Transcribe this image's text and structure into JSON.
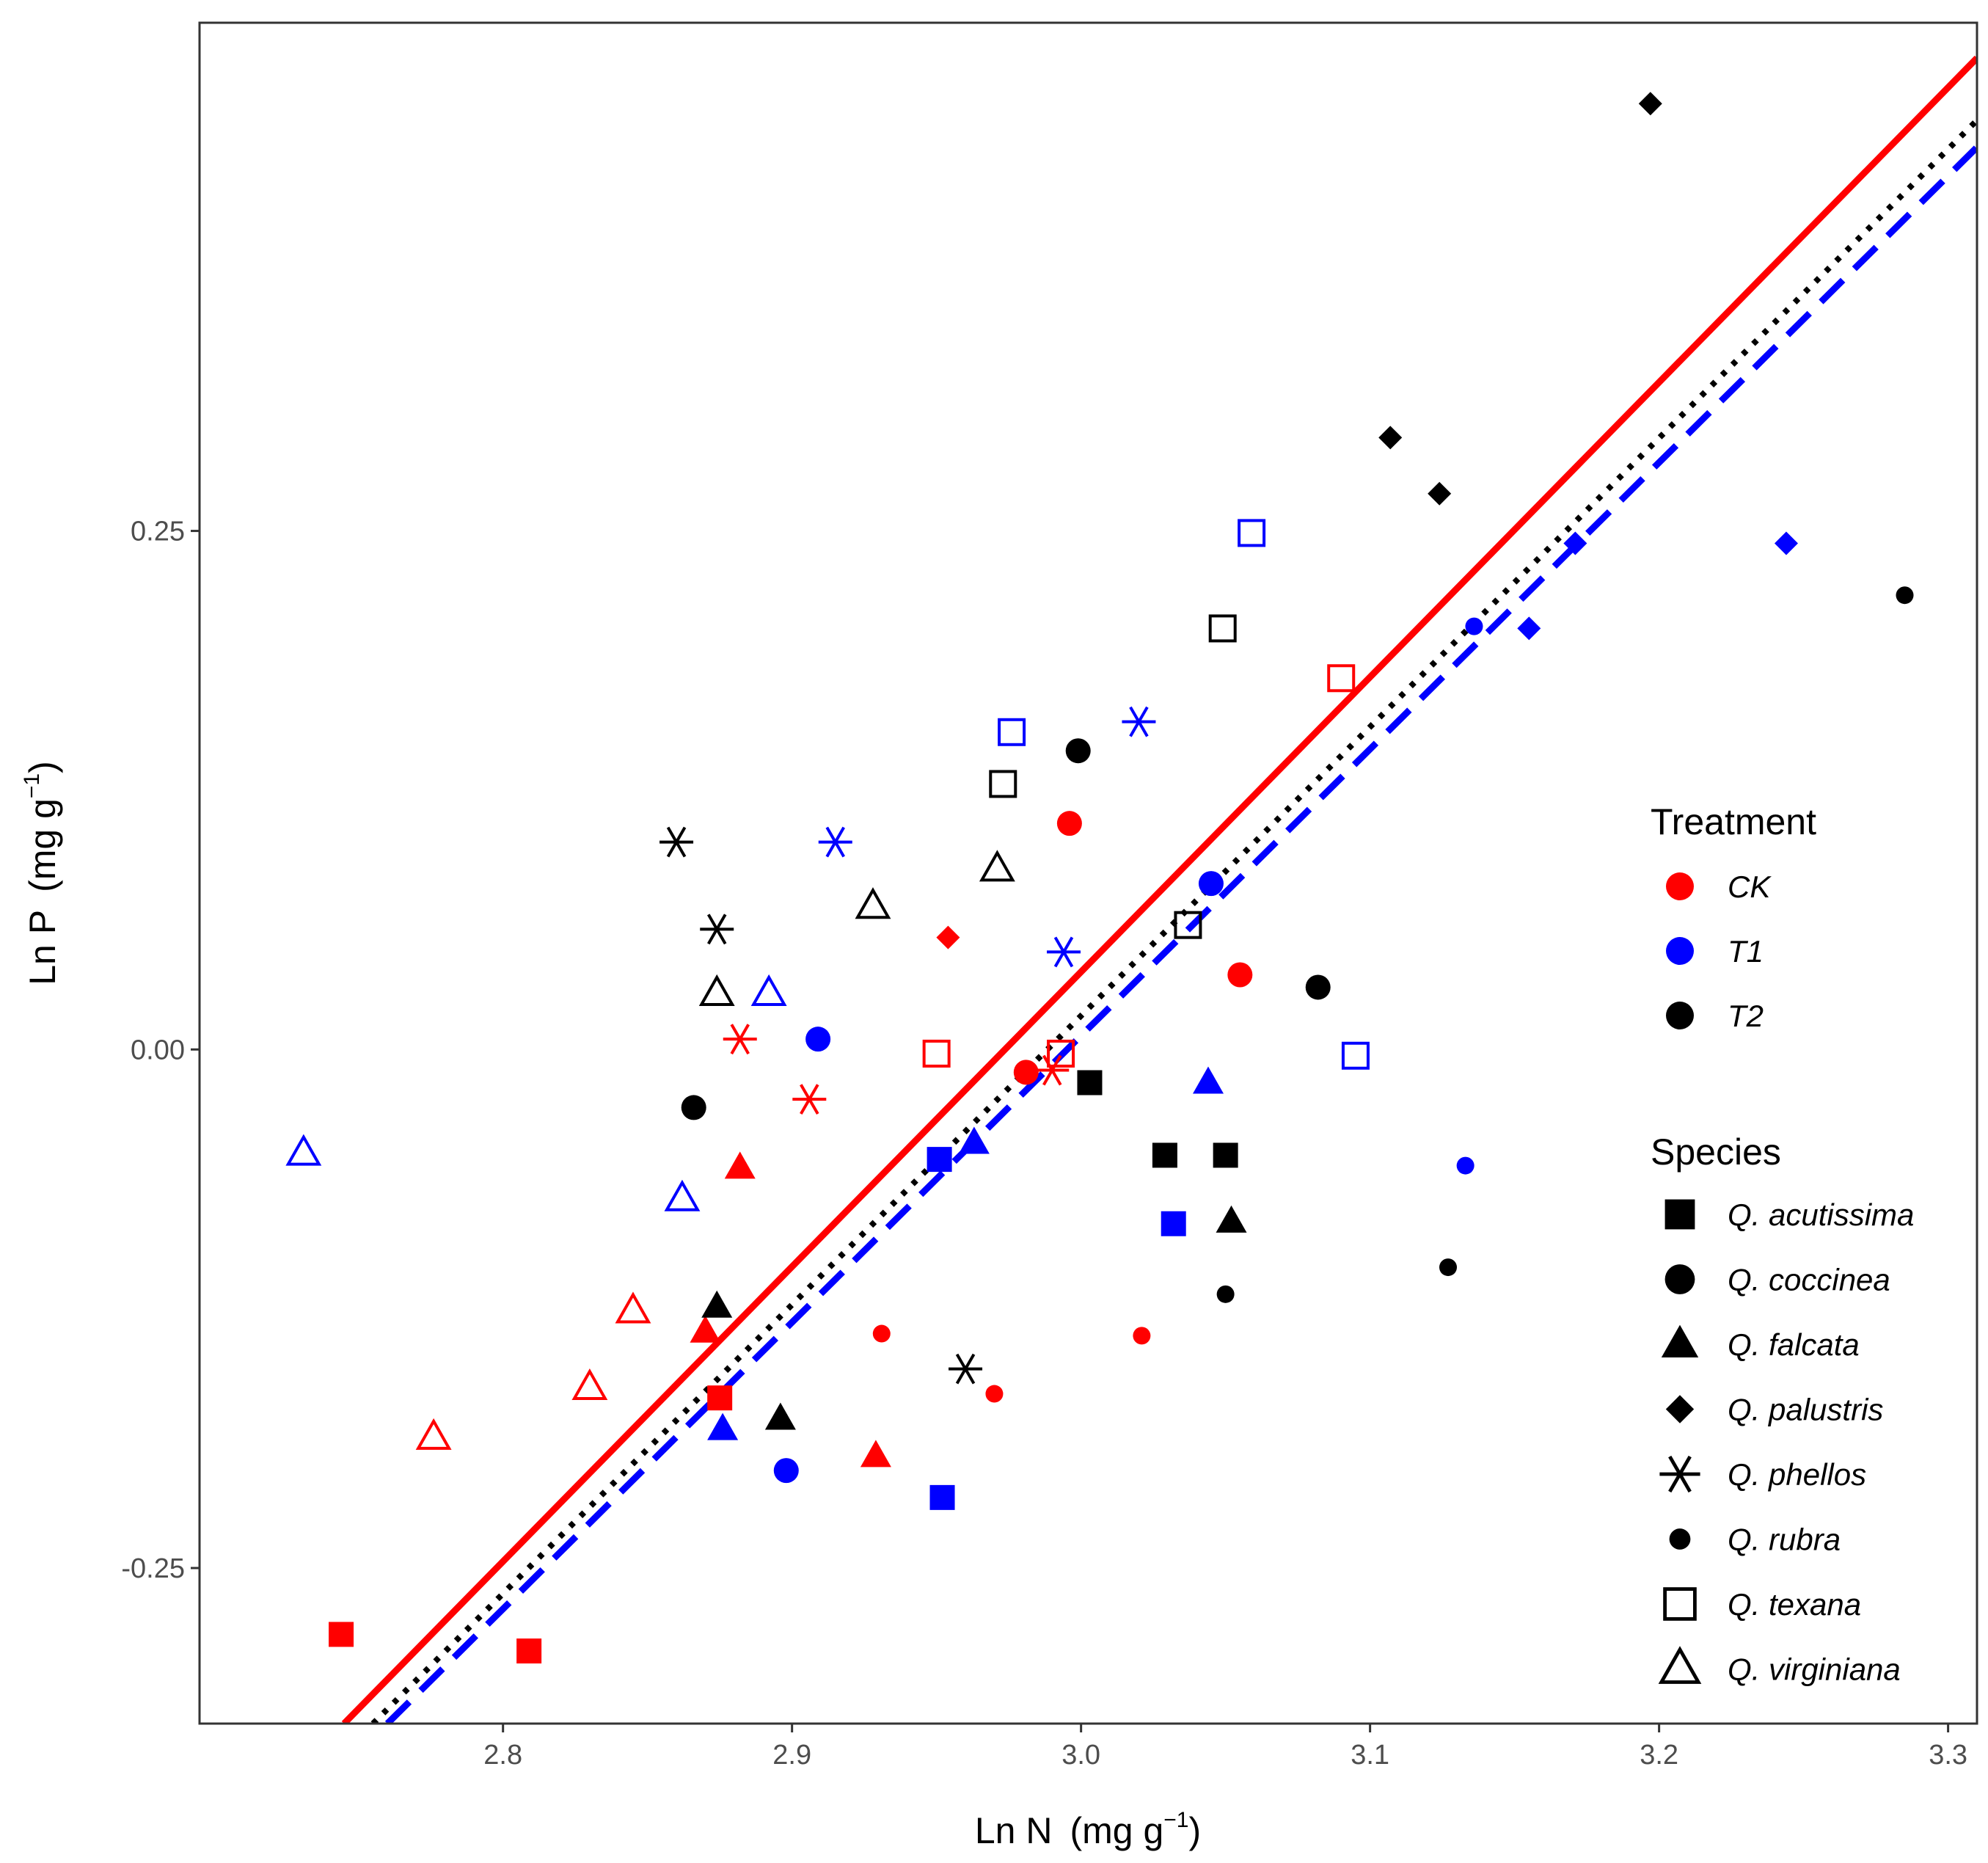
{
  "chart_data": {
    "type": "scatter",
    "xlabel": {
      "main": "Ln N",
      "unit_prefix": "(mg g",
      "unit_exp": "−1",
      "unit_suffix": ")"
    },
    "ylabel": {
      "main": "Ln P",
      "unit_prefix": "(mg g",
      "unit_exp": "−1",
      "unit_suffix": ")"
    },
    "xlim": [
      2.695,
      3.31
    ],
    "ylim": [
      -0.325,
      0.495
    ],
    "x_ticks": [
      {
        "value": 2.8,
        "label": "2.8"
      },
      {
        "value": 2.9,
        "label": "2.9"
      },
      {
        "value": 3.0,
        "label": "3.0"
      },
      {
        "value": 3.1,
        "label": "3.1"
      },
      {
        "value": 3.2,
        "label": "3.2"
      },
      {
        "value": 3.3,
        "label": "3.3"
      }
    ],
    "y_ticks": [
      {
        "value": -0.25,
        "label": "-0.25"
      },
      {
        "value": 0.0,
        "label": "0.00"
      },
      {
        "value": 0.25,
        "label": "0.25"
      }
    ],
    "grid": false,
    "colors": {
      "CK": "#ff0000",
      "T1": "#0000ff",
      "T2": "#000000"
    },
    "fit_lines": [
      {
        "treatment": "CK",
        "style": "solid",
        "x": [
          2.745,
          3.31
        ],
        "y": [
          -0.325,
          0.478
        ]
      },
      {
        "treatment": "T2",
        "style": "dotted",
        "x": [
          2.755,
          3.31
        ],
        "y": [
          -0.325,
          0.448
        ]
      },
      {
        "treatment": "T1",
        "style": "dashed",
        "x": [
          2.76,
          3.31
        ],
        "y": [
          -0.325,
          0.435
        ]
      }
    ],
    "legend": {
      "position": "right",
      "treatment_title": "Treatment",
      "treatments": [
        {
          "key": "CK",
          "label": "CK"
        },
        {
          "key": "T1",
          "label": "T1"
        },
        {
          "key": "T2",
          "label": "T2"
        }
      ],
      "species_title": "Species",
      "species": [
        {
          "shape": "square-filled",
          "label": "Q. acutissima"
        },
        {
          "shape": "circle-filled",
          "label": "Q. coccinea"
        },
        {
          "shape": "triangle-filled",
          "label": "Q. falcata"
        },
        {
          "shape": "diamond-filled",
          "label": "Q. palustris"
        },
        {
          "shape": "star",
          "label": "Q. phellos"
        },
        {
          "shape": "small-circle",
          "label": "Q. rubra"
        },
        {
          "shape": "square-open",
          "label": "Q. texana"
        },
        {
          "shape": "triangle-open",
          "label": "Q. virginiana"
        }
      ]
    },
    "points": [
      {
        "x": 2.744,
        "y": -0.282,
        "shape": "square-filled",
        "treatment": "CK"
      },
      {
        "x": 2.809,
        "y": -0.29,
        "shape": "square-filled",
        "treatment": "CK"
      },
      {
        "x": 2.875,
        "y": -0.168,
        "shape": "square-filled",
        "treatment": "CK"
      },
      {
        "x": 2.951,
        "y": -0.053,
        "shape": "square-filled",
        "treatment": "T1"
      },
      {
        "x": 3.032,
        "y": -0.084,
        "shape": "square-filled",
        "treatment": "T1"
      },
      {
        "x": 2.952,
        "y": -0.216,
        "shape": "square-filled",
        "treatment": "T1"
      },
      {
        "x": 3.003,
        "y": -0.016,
        "shape": "square-filled",
        "treatment": "T2"
      },
      {
        "x": 3.029,
        "y": -0.051,
        "shape": "square-filled",
        "treatment": "T2"
      },
      {
        "x": 3.05,
        "y": -0.051,
        "shape": "square-filled",
        "treatment": "T2"
      },
      {
        "x": 2.996,
        "y": 0.109,
        "shape": "circle-filled",
        "treatment": "CK"
      },
      {
        "x": 2.981,
        "y": -0.011,
        "shape": "circle-filled",
        "treatment": "CK"
      },
      {
        "x": 3.055,
        "y": 0.036,
        "shape": "circle-filled",
        "treatment": "CK"
      },
      {
        "x": 2.909,
        "y": 0.005,
        "shape": "circle-filled",
        "treatment": "T1"
      },
      {
        "x": 3.045,
        "y": 0.08,
        "shape": "circle-filled",
        "treatment": "T1"
      },
      {
        "x": 2.898,
        "y": -0.203,
        "shape": "circle-filled",
        "treatment": "T1"
      },
      {
        "x": 2.999,
        "y": 0.144,
        "shape": "circle-filled",
        "treatment": "T2"
      },
      {
        "x": 2.866,
        "y": -0.028,
        "shape": "circle-filled",
        "treatment": "T2"
      },
      {
        "x": 3.082,
        "y": 0.03,
        "shape": "circle-filled",
        "treatment": "T2"
      },
      {
        "x": 2.882,
        "y": -0.057,
        "shape": "triangle-filled",
        "treatment": "CK"
      },
      {
        "x": 2.87,
        "y": -0.136,
        "shape": "triangle-filled",
        "treatment": "CK"
      },
      {
        "x": 2.929,
        "y": -0.196,
        "shape": "triangle-filled",
        "treatment": "CK"
      },
      {
        "x": 3.044,
        "y": -0.016,
        "shape": "triangle-filled",
        "treatment": "T1"
      },
      {
        "x": 2.963,
        "y": -0.045,
        "shape": "triangle-filled",
        "treatment": "T1"
      },
      {
        "x": 2.876,
        "y": -0.183,
        "shape": "triangle-filled",
        "treatment": "T1"
      },
      {
        "x": 3.052,
        "y": -0.083,
        "shape": "triangle-filled",
        "treatment": "T2"
      },
      {
        "x": 2.874,
        "y": -0.124,
        "shape": "triangle-filled",
        "treatment": "T2"
      },
      {
        "x": 2.896,
        "y": -0.178,
        "shape": "triangle-filled",
        "treatment": "T2"
      },
      {
        "x": 2.954,
        "y": 0.054,
        "shape": "diamond-filled",
        "treatment": "CK"
      },
      {
        "x": 3.171,
        "y": 0.244,
        "shape": "diamond-filled",
        "treatment": "T1"
      },
      {
        "x": 3.155,
        "y": 0.203,
        "shape": "diamond-filled",
        "treatment": "T1"
      },
      {
        "x": 3.244,
        "y": 0.244,
        "shape": "diamond-filled",
        "treatment": "T1"
      },
      {
        "x": 3.197,
        "y": 0.456,
        "shape": "diamond-filled",
        "treatment": "T2"
      },
      {
        "x": 3.107,
        "y": 0.295,
        "shape": "diamond-filled",
        "treatment": "T2"
      },
      {
        "x": 3.124,
        "y": 0.268,
        "shape": "diamond-filled",
        "treatment": "T2"
      },
      {
        "x": 2.882,
        "y": 0.005,
        "shape": "star",
        "treatment": "CK"
      },
      {
        "x": 2.906,
        "y": -0.024,
        "shape": "star",
        "treatment": "CK"
      },
      {
        "x": 2.99,
        "y": -0.01,
        "shape": "star",
        "treatment": "CK"
      },
      {
        "x": 3.02,
        "y": 0.158,
        "shape": "star",
        "treatment": "T1"
      },
      {
        "x": 2.915,
        "y": 0.1,
        "shape": "star",
        "treatment": "T1"
      },
      {
        "x": 2.994,
        "y": 0.047,
        "shape": "star",
        "treatment": "T1"
      },
      {
        "x": 2.86,
        "y": 0.1,
        "shape": "star",
        "treatment": "T2"
      },
      {
        "x": 2.874,
        "y": 0.058,
        "shape": "star",
        "treatment": "T2"
      },
      {
        "x": 2.96,
        "y": -0.154,
        "shape": "star",
        "treatment": "T2"
      },
      {
        "x": 2.931,
        "y": -0.137,
        "shape": "small-circle",
        "treatment": "CK"
      },
      {
        "x": 2.97,
        "y": -0.166,
        "shape": "small-circle",
        "treatment": "CK"
      },
      {
        "x": 3.021,
        "y": -0.138,
        "shape": "small-circle",
        "treatment": "CK"
      },
      {
        "x": 3.136,
        "y": 0.204,
        "shape": "small-circle",
        "treatment": "T1"
      },
      {
        "x": 3.133,
        "y": -0.056,
        "shape": "small-circle",
        "treatment": "T1"
      },
      {
        "x": 3.285,
        "y": 0.219,
        "shape": "small-circle",
        "treatment": "T2"
      },
      {
        "x": 3.05,
        "y": -0.118,
        "shape": "small-circle",
        "treatment": "T2"
      },
      {
        "x": 3.127,
        "y": -0.105,
        "shape": "small-circle",
        "treatment": "T2"
      },
      {
        "x": 3.09,
        "y": 0.179,
        "shape": "square-open",
        "treatment": "CK"
      },
      {
        "x": 2.95,
        "y": -0.002,
        "shape": "square-open",
        "treatment": "CK"
      },
      {
        "x": 2.993,
        "y": -0.002,
        "shape": "square-open",
        "treatment": "CK"
      },
      {
        "x": 3.059,
        "y": 0.249,
        "shape": "square-open",
        "treatment": "T1"
      },
      {
        "x": 2.976,
        "y": 0.153,
        "shape": "square-open",
        "treatment": "T1"
      },
      {
        "x": 3.095,
        "y": -0.003,
        "shape": "square-open",
        "treatment": "T1"
      },
      {
        "x": 3.049,
        "y": 0.203,
        "shape": "square-open",
        "treatment": "T2"
      },
      {
        "x": 2.973,
        "y": 0.128,
        "shape": "square-open",
        "treatment": "T2"
      },
      {
        "x": 3.037,
        "y": 0.06,
        "shape": "square-open",
        "treatment": "T2"
      },
      {
        "x": 2.776,
        "y": -0.187,
        "shape": "triangle-open",
        "treatment": "CK"
      },
      {
        "x": 2.83,
        "y": -0.163,
        "shape": "triangle-open",
        "treatment": "CK"
      },
      {
        "x": 2.845,
        "y": -0.126,
        "shape": "triangle-open",
        "treatment": "CK"
      },
      {
        "x": 2.731,
        "y": -0.05,
        "shape": "triangle-open",
        "treatment": "T1"
      },
      {
        "x": 2.892,
        "y": 0.027,
        "shape": "triangle-open",
        "treatment": "T1"
      },
      {
        "x": 2.862,
        "y": -0.072,
        "shape": "triangle-open",
        "treatment": "T1"
      },
      {
        "x": 2.971,
        "y": 0.087,
        "shape": "triangle-open",
        "treatment": "T2"
      },
      {
        "x": 2.928,
        "y": 0.069,
        "shape": "triangle-open",
        "treatment": "T2"
      },
      {
        "x": 2.874,
        "y": 0.027,
        "shape": "triangle-open",
        "treatment": "T2"
      }
    ]
  }
}
